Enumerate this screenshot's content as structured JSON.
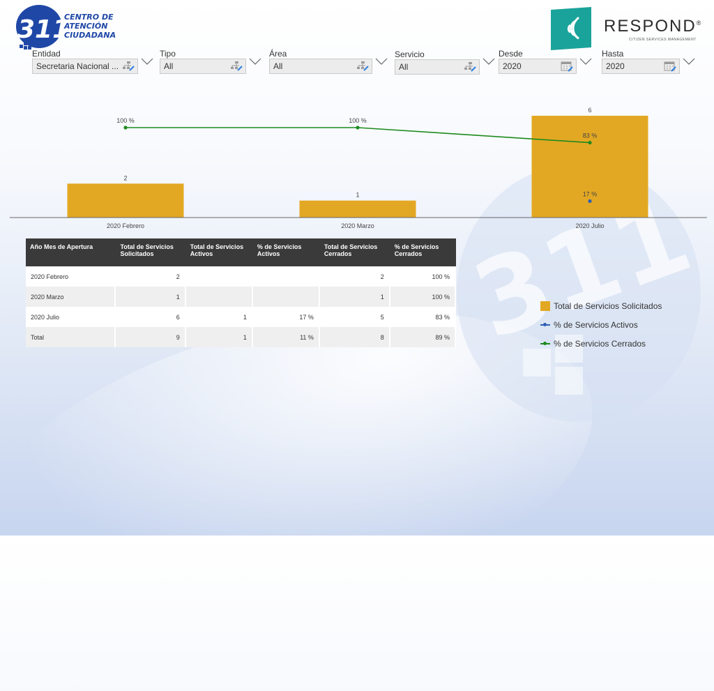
{
  "filters": [
    {
      "label": "Entidad",
      "value": "Secretaria Nacional ..."
    },
    {
      "label": "Tipo",
      "value": "All"
    },
    {
      "label": "Área",
      "value": "All"
    },
    {
      "label": "Servicio",
      "value": "All"
    },
    {
      "label": "Desde",
      "value": "2020"
    },
    {
      "label": "Hasta",
      "value": "2020"
    }
  ],
  "logo311": {
    "number": "311",
    "line1": "CENTRO DE",
    "line2": "ATENCIÓN",
    "line3": "CIUDADANA"
  },
  "logoRespond": {
    "word": "RESPOND",
    "reg": "®",
    "sub": "CITIZEN SERVICES MANAGEMENT"
  },
  "colors": {
    "bar": "#e3a823",
    "activos": "#2f5fb3",
    "cerrados": "#1e8a1e",
    "header": "#3a3a3a"
  },
  "chart_data": {
    "type": "bar",
    "categories": [
      "2020 Febrero",
      "2020 Marzo",
      "2020 Julio"
    ],
    "bar_labels": [
      "2",
      "1",
      "6"
    ],
    "series": [
      {
        "name": "Total de Servicios Solicitados",
        "kind": "bar",
        "values": [
          2,
          1,
          6
        ]
      },
      {
        "name": "% de Servicios Activos",
        "kind": "line",
        "values": [
          null,
          null,
          17
        ],
        "labels": [
          "",
          "",
          "17 %"
        ]
      },
      {
        "name": "% de Servicios Cerrados",
        "kind": "line",
        "values": [
          100,
          100,
          83
        ],
        "labels": [
          "100 %",
          "100 %",
          "83 %"
        ]
      }
    ]
  },
  "table": {
    "headers": [
      "Año Mes de Apertura",
      "Total de Servicios Solicitados",
      "Total de Servicios Activos",
      "% de Servicios Activos",
      "Total de Servicios Cerrados",
      "% de Servicios Cerrados"
    ],
    "rows": [
      [
        "2020 Febrero",
        "2",
        "",
        "",
        "2",
        "100 %"
      ],
      [
        "2020 Marzo",
        "1",
        "",
        "",
        "1",
        "100 %"
      ],
      [
        "2020 Julio",
        "6",
        "1",
        "17 %",
        "5",
        "83 %"
      ],
      [
        "Total",
        "9",
        "1",
        "11 %",
        "8",
        "89 %"
      ]
    ]
  },
  "legend": [
    "Total de Servicios Solicitados",
    "% de Servicios Activos",
    "% de Servicios Cerrados"
  ]
}
